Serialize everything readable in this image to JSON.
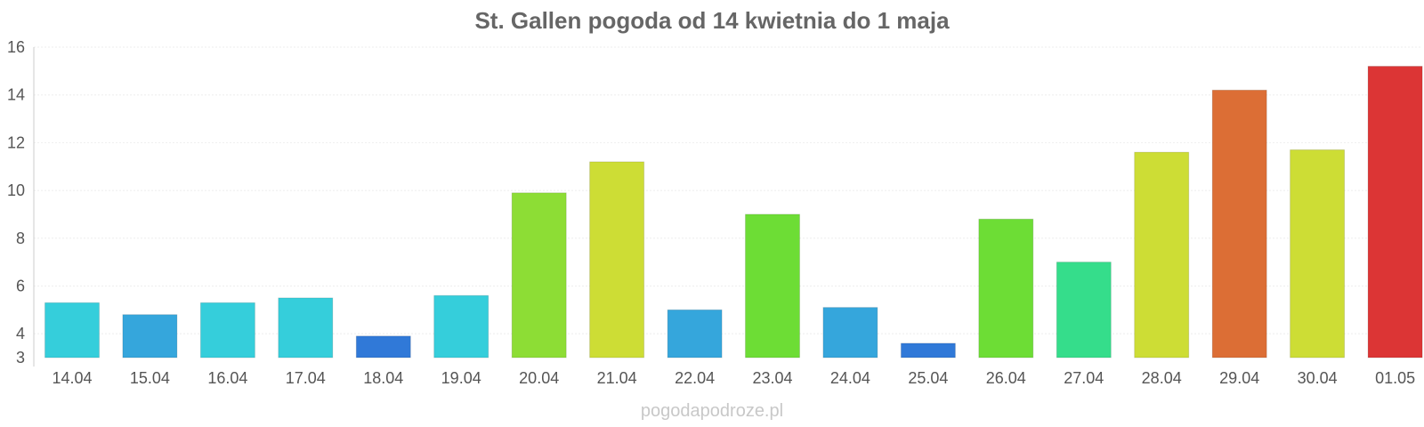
{
  "chart_data": {
    "type": "bar",
    "title": "St. Gallen pogoda od 14 kwietnia do 1 maja",
    "xlabel": "",
    "ylabel": "",
    "ylim": [
      3,
      16
    ],
    "yticks": [
      3,
      4,
      6,
      8,
      10,
      12,
      14,
      16
    ],
    "grid": true,
    "legend": "none",
    "categories": [
      "14.04",
      "15.04",
      "16.04",
      "17.04",
      "18.04",
      "19.04",
      "20.04",
      "21.04",
      "22.04",
      "23.04",
      "24.04",
      "25.04",
      "26.04",
      "27.04",
      "28.04",
      "29.04",
      "30.04",
      "01.05"
    ],
    "values": [
      5.3,
      4.8,
      5.3,
      5.5,
      3.9,
      5.6,
      9.9,
      11.2,
      5.0,
      9.0,
      5.1,
      3.6,
      8.8,
      7.0,
      11.6,
      14.2,
      11.7,
      15.2
    ],
    "colors": [
      "#35cedb",
      "#35a6dc",
      "#35cedb",
      "#35cedb",
      "#3079d8",
      "#35cedb",
      "#8ddd35",
      "#cddd35",
      "#35a6dc",
      "#6ddd35",
      "#35a6dc",
      "#3079d8",
      "#6ddd35",
      "#35dd8b",
      "#cddd35",
      "#dc6e35",
      "#cddd35",
      "#dc3535"
    ]
  },
  "watermark": "pogodapodroze.pl"
}
